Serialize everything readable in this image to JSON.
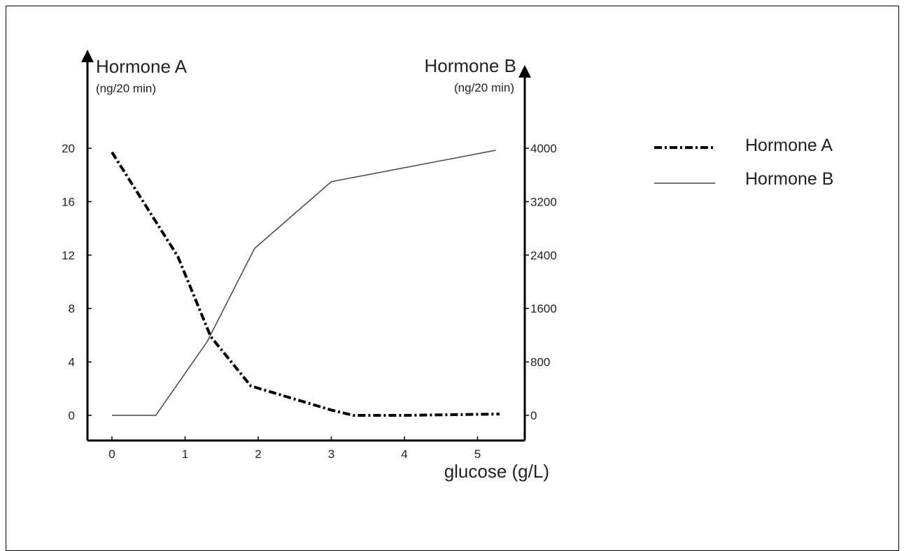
{
  "chart_data": {
    "type": "line",
    "left_axis": {
      "title": "Hormone A",
      "unit": "(ng/20 min)",
      "ticks": [
        0,
        4,
        8,
        12,
        16,
        20
      ],
      "range": [
        -2,
        24
      ]
    },
    "right_axis": {
      "title": "Hormone B",
      "unit": "(ng/20 min)",
      "ticks": [
        0,
        800,
        1600,
        2400,
        3200,
        4000
      ],
      "range": [
        -400,
        4800
      ]
    },
    "x_axis": {
      "label": "glucose (g/L)",
      "ticks": [
        0,
        1,
        2,
        3,
        4,
        5
      ],
      "range": [
        -0.35,
        5.7
      ]
    },
    "series": [
      {
        "name": "Hormone A",
        "axis": "left",
        "style": "dash-dot",
        "color": "#000000",
        "points": [
          [
            0,
            19.7
          ],
          [
            0.9,
            11.9
          ],
          [
            1.35,
            5.9
          ],
          [
            1.9,
            2.2
          ],
          [
            3.0,
            0.4
          ],
          [
            3.3,
            0.0
          ],
          [
            4.0,
            0.0
          ],
          [
            5.3,
            0.1
          ]
        ]
      },
      {
        "name": "Hormone B",
        "axis": "right",
        "style": "solid",
        "color": "#444444",
        "points": [
          [
            0,
            0
          ],
          [
            0.6,
            0
          ],
          [
            1.3,
            1100
          ],
          [
            1.95,
            2500
          ],
          [
            3.0,
            3500
          ],
          [
            5.25,
            3970
          ]
        ]
      }
    ],
    "legend": {
      "position": "right",
      "entries": [
        "Hormone A",
        "Hormone B"
      ]
    }
  }
}
